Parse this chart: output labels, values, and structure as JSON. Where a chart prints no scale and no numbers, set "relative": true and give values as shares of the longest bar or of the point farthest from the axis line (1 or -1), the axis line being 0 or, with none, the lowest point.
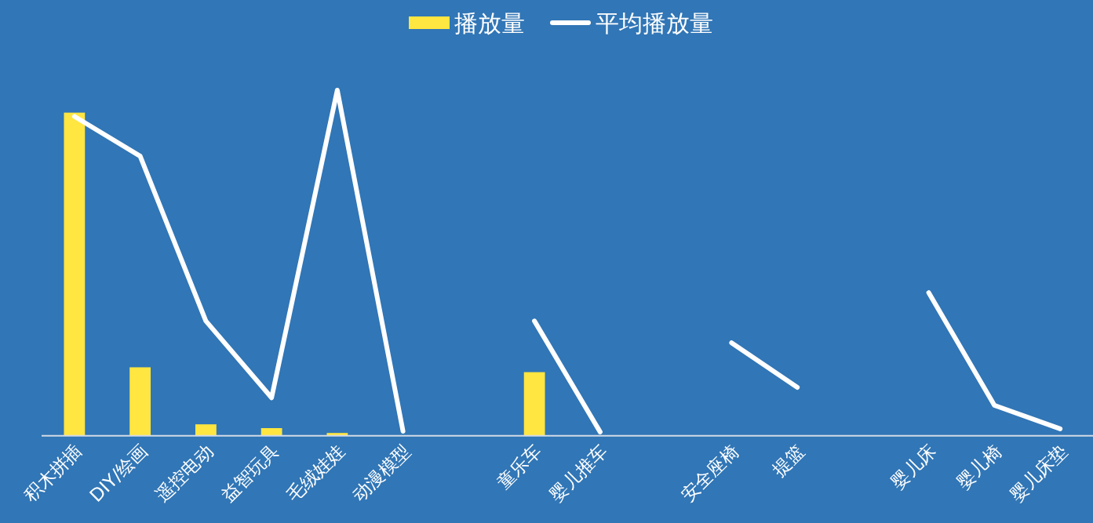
{
  "chart_data": {
    "type": "bar",
    "relative": true,
    "legend": "top",
    "line_style": "solid",
    "categories": [
      "积木拼插",
      "DIY/绘画",
      "遥控电动",
      "益智玩具",
      "毛绒娃娃",
      "动漫模型",
      null,
      "童乐车",
      "婴儿推车",
      null,
      "安全座椅",
      "提篮",
      null,
      "婴儿床",
      "婴儿椅",
      "婴儿床垫"
    ],
    "series": [
      {
        "name": "播放量",
        "color": "#ffe640",
        "values": [
          0.935,
          0.198,
          0.033,
          0.022,
          0.008,
          0,
          null,
          0.184,
          0,
          null,
          0,
          0,
          null,
          0,
          0,
          0
        ]
      },
      {
        "name": "平均播放量",
        "type": "line",
        "color": "#ffffff",
        "values": [
          0.924,
          0.809,
          0.332,
          0.11,
          1,
          0.013,
          null,
          0.332,
          0.011,
          null,
          0.269,
          0.14,
          null,
          0.414,
          0.088,
          0.02
        ]
      }
    ]
  }
}
